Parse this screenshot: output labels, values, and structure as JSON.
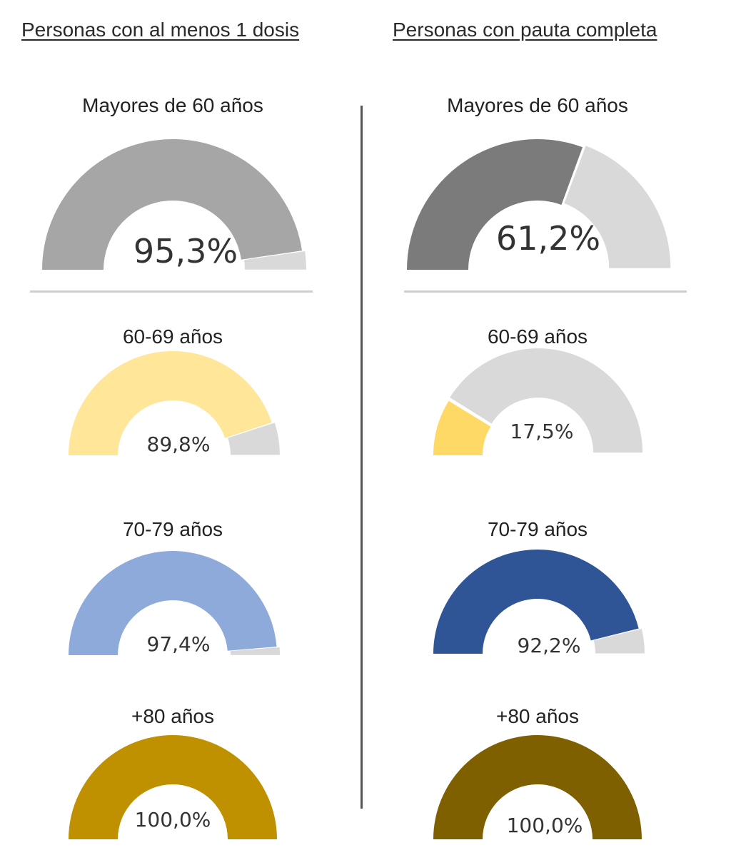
{
  "headers": {
    "left": "Personas con al menos 1 dosis",
    "right": "Personas con pauta completa"
  },
  "chart_data": [
    {
      "type": "gauge",
      "column": "Personas con al menos 1 dosis",
      "title": "Mayores de 60 años",
      "value": 95.3,
      "value_label": "95,3%",
      "colors": {
        "fill": "#a6a6a6",
        "remainder": "#d9d9d9"
      }
    },
    {
      "type": "gauge",
      "column": "Personas con al menos 1 dosis",
      "title": "60-69 años",
      "value": 89.8,
      "value_label": "89,8%",
      "colors": {
        "fill": "#ffe699",
        "remainder": "#d9d9d9"
      }
    },
    {
      "type": "gauge",
      "column": "Personas con al menos 1 dosis",
      "title": "70-79 años",
      "value": 97.4,
      "value_label": "97,4%",
      "colors": {
        "fill": "#8eaadb",
        "remainder": "#d9d9d9"
      }
    },
    {
      "type": "gauge",
      "column": "Personas con al menos 1 dosis",
      "title": "+80 años",
      "value": 100.0,
      "value_label": "100,0%",
      "colors": {
        "fill": "#bf9000",
        "remainder": "#d9d9d9"
      }
    },
    {
      "type": "gauge",
      "column": "Personas con pauta completa",
      "title": "Mayores de 60 años",
      "value": 61.2,
      "value_label": "61,2%",
      "colors": {
        "fill": "#7b7b7b",
        "remainder": "#d9d9d9"
      }
    },
    {
      "type": "gauge",
      "column": "Personas con pauta completa",
      "title": "60-69 años",
      "value": 17.5,
      "value_label": "17,5%",
      "colors": {
        "fill": "#ffd966",
        "remainder": "#d9d9d9"
      }
    },
    {
      "type": "gauge",
      "column": "Personas con pauta completa",
      "title": "70-79 años",
      "value": 92.2,
      "value_label": "92,2%",
      "colors": {
        "fill": "#2f5597",
        "remainder": "#d9d9d9"
      }
    },
    {
      "type": "gauge",
      "column": "Personas con pauta completa",
      "title": "+80 años",
      "value": 100.0,
      "value_label": "100,0%",
      "colors": {
        "fill": "#7f6000",
        "remainder": "#d9d9d9"
      }
    }
  ]
}
